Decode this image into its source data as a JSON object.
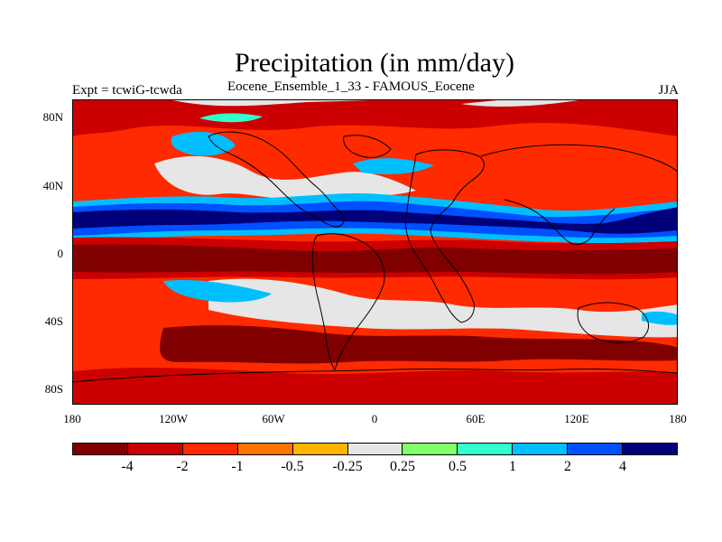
{
  "header": {
    "title": "Precipitation (in mm/day)",
    "left": "Expt = tcwiG-tcwda",
    "center": "Eocene_Ensemble_1_33 - FAMOUS_Eocene",
    "right": "JJA"
  },
  "axes": {
    "lat_labels": [
      "80N",
      "40N",
      "0",
      "40S",
      "80S"
    ],
    "lon_labels": [
      "180",
      "120W",
      "60W",
      "0",
      "60E",
      "120E",
      "180"
    ]
  },
  "colorbar": {
    "colors": [
      "#800000",
      "#cc0000",
      "#ff2a00",
      "#ff7300",
      "#ffb400",
      "#e6e6e6",
      "#80ff66",
      "#33ffcc",
      "#00bfff",
      "#0050ff",
      "#00007a"
    ],
    "labels": [
      "-4",
      "-2",
      "-1",
      "-0.5",
      "-0.25",
      "0.25",
      "0.5",
      "1",
      "2",
      "4"
    ]
  },
  "map": {
    "background": "#ff2a00",
    "bands": [
      {
        "color": "#cc0000"
      },
      {
        "color": "#e6e6e6"
      },
      {
        "color": "#00007a"
      },
      {
        "color": "#800000"
      },
      {
        "color": "#00bfff"
      },
      {
        "color": "#e6e6e6"
      },
      {
        "color": "#800000"
      },
      {
        "color": "#cc0000"
      }
    ]
  }
}
